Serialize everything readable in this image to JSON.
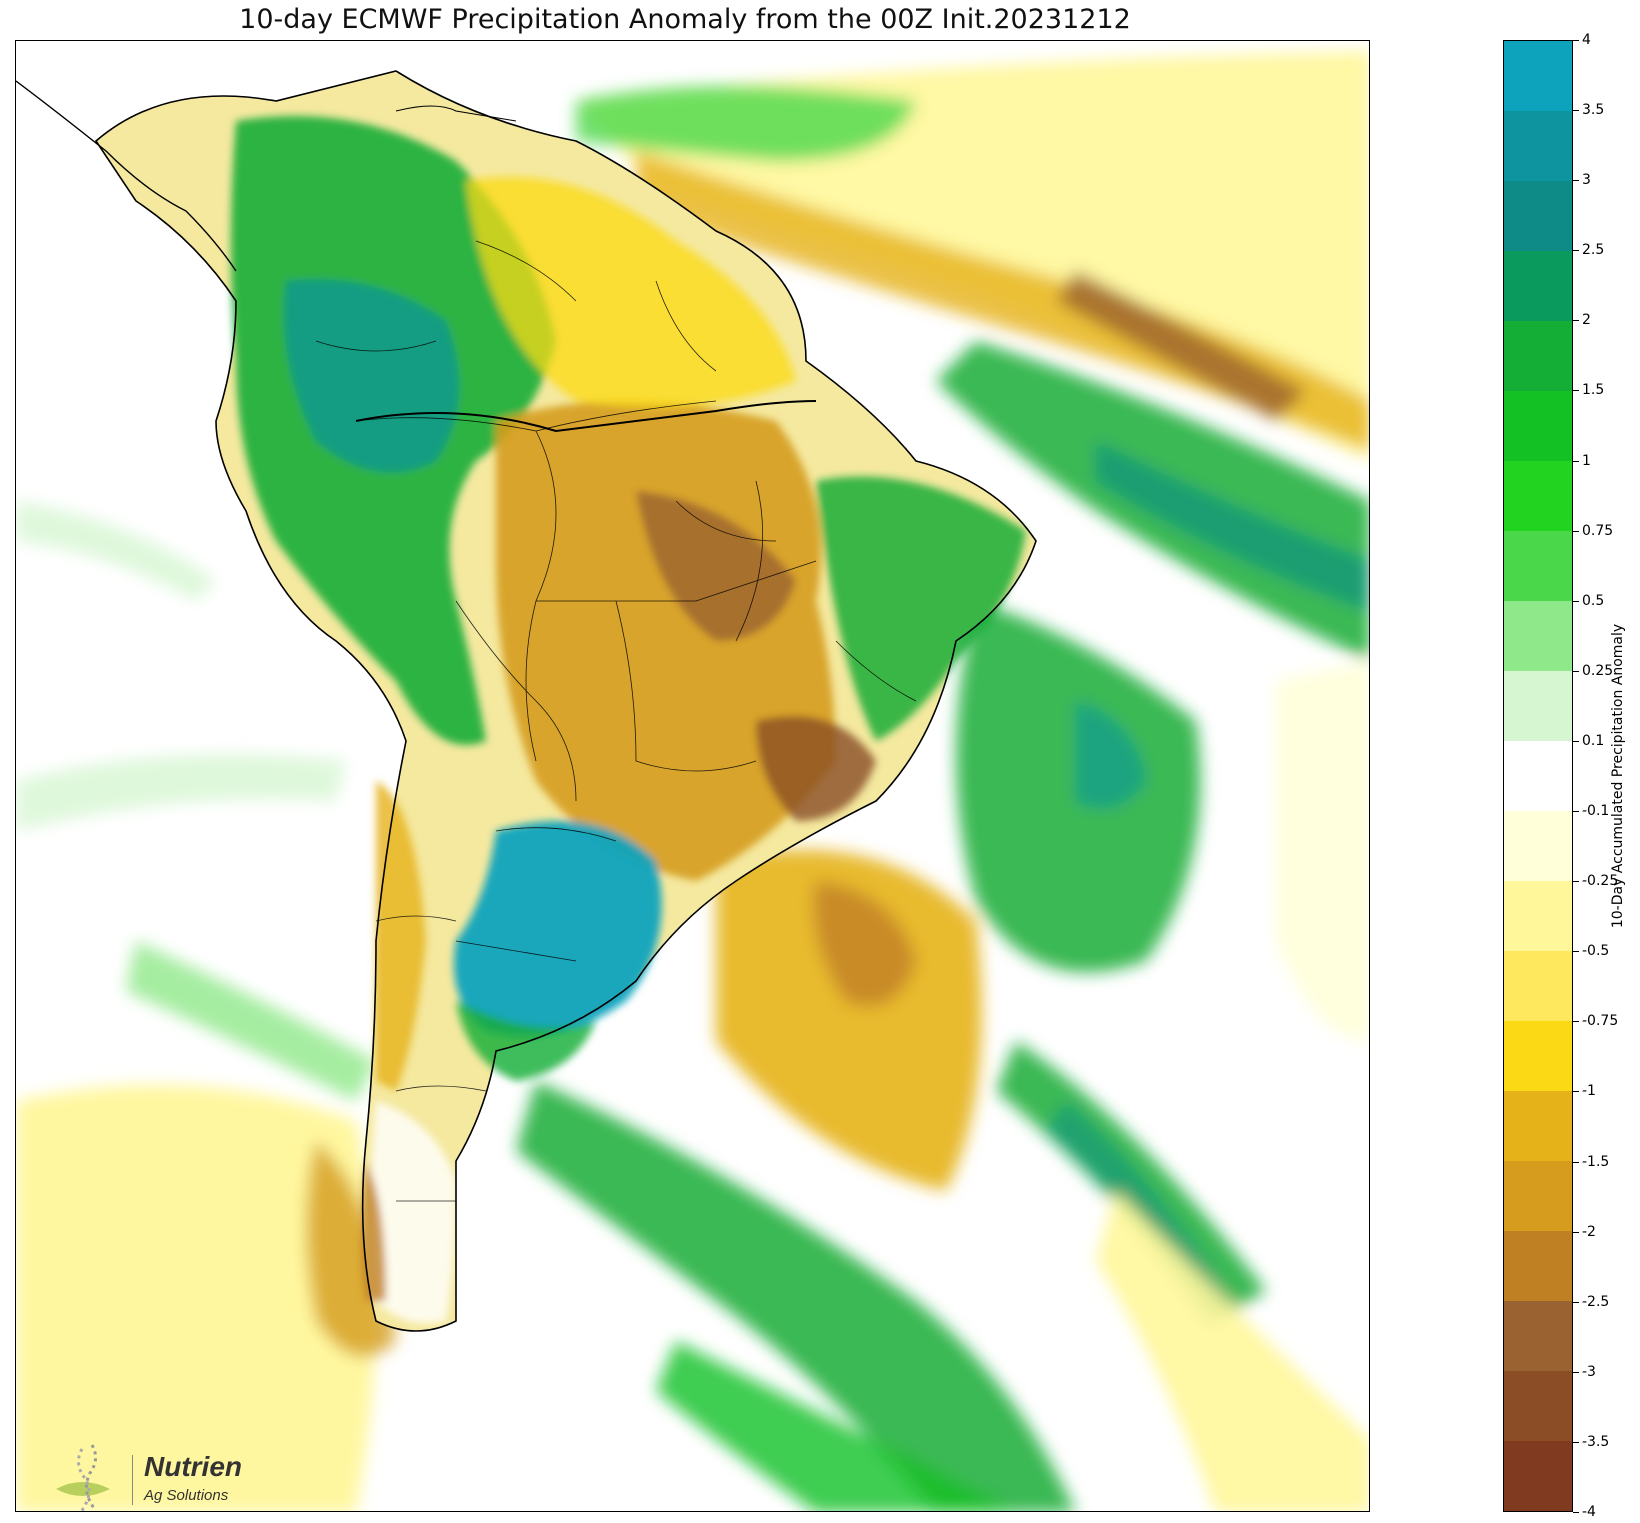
{
  "title": "10-day ECMWF Precipitation Anomaly from the 00Z Init.20231212",
  "colorbar": {
    "label": "10-Day Accumulated Precipitation Anomaly",
    "ticks": [
      "4",
      "3.5",
      "3",
      "2.5",
      "2",
      "1.5",
      "1",
      "0.75",
      "0.5",
      "0.25",
      "0.1",
      "-0.1",
      "-0.25",
      "-0.5",
      "-0.75",
      "-1",
      "-1.5",
      "-2",
      "-2.5",
      "-3",
      "-3.5",
      "-4"
    ],
    "colors": [
      "#0da3bd",
      "#0e949e",
      "#0e8a87",
      "#0b9a5e",
      "#14ad36",
      "#13c124",
      "#22d31f",
      "#4ad84a",
      "#8fe88a",
      "#d6f6d2",
      "#ffffff",
      "#ffffd9",
      "#fff79a",
      "#fde85e",
      "#fbd914",
      "#e6b21a",
      "#d59c1d",
      "#bf7f23",
      "#9a6230",
      "#8a4d25",
      "#7f3a1f"
    ]
  },
  "logo": {
    "name": "Nutrien",
    "sub": "Ag Solutions"
  },
  "legend_colors": {
    "wet_strong": "#0da3bd",
    "wet": "#14ad36",
    "wet_light": "#8fe88a",
    "neutral": "#ffffff",
    "dry_light": "#fff79a",
    "dry": "#d59c1d",
    "dry_strong": "#9a6230",
    "boundary": "#000000"
  }
}
